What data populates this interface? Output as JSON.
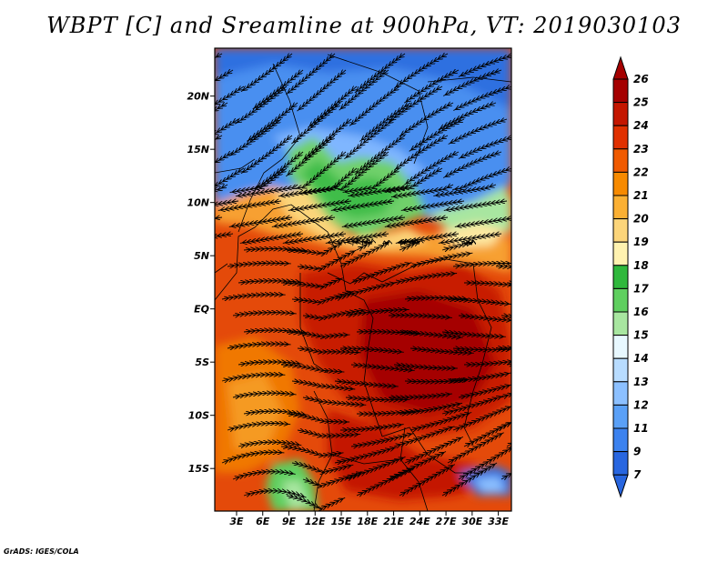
{
  "title": "WBPT [C] and Sreamline at 900hPa, VT: 2019030103",
  "credit": "GrADS: IGES/COLA",
  "lat_labels": [
    "20N",
    "15N",
    "10N",
    "5N",
    "EQ",
    "5S",
    "10S",
    "15S"
  ],
  "lon_labels": [
    "3E",
    "6E",
    "9E",
    "12E",
    "15E",
    "18E",
    "21E",
    "24E",
    "27E",
    "30E",
    "33E"
  ],
  "colorbar": {
    "labels": [
      "26",
      "25",
      "24",
      "23",
      "22",
      "21",
      "20",
      "19",
      "18",
      "17",
      "16",
      "15",
      "14",
      "13",
      "12",
      "11",
      "9",
      "7"
    ],
    "colors": [
      "#a50000",
      "#c41600",
      "#e03000",
      "#f05a00",
      "#f78a00",
      "#fbb033",
      "#fcd57a",
      "#fff2b0",
      "#2fb83c",
      "#5fcf5f",
      "#a8e6a0",
      "#e8f8ff",
      "#b8dcff",
      "#8cc0ff",
      "#5aa0f7",
      "#3c82ef",
      "#2866e0"
    ]
  },
  "chart_data": {
    "type": "heatmap",
    "title": "WBPT [C] and Sreamline at 900hPa, VT: 2019030103",
    "variable": "WBPT [C]",
    "level": "900hPa",
    "valid_time": "2019030103",
    "x_ticks": [
      "3E",
      "6E",
      "9E",
      "12E",
      "15E",
      "18E",
      "21E",
      "24E",
      "27E",
      "30E",
      "33E"
    ],
    "y_ticks": [
      "20N",
      "15N",
      "10N",
      "5N",
      "EQ",
      "5S",
      "10S",
      "15S"
    ],
    "xlim": [
      0.5,
      34.5
    ],
    "ylim": [
      -19,
      24.5
    ],
    "color_levels": [
      7,
      9,
      11,
      12,
      13,
      14,
      15,
      16,
      17,
      18,
      19,
      20,
      21,
      22,
      23,
      24,
      25,
      26
    ]
  }
}
